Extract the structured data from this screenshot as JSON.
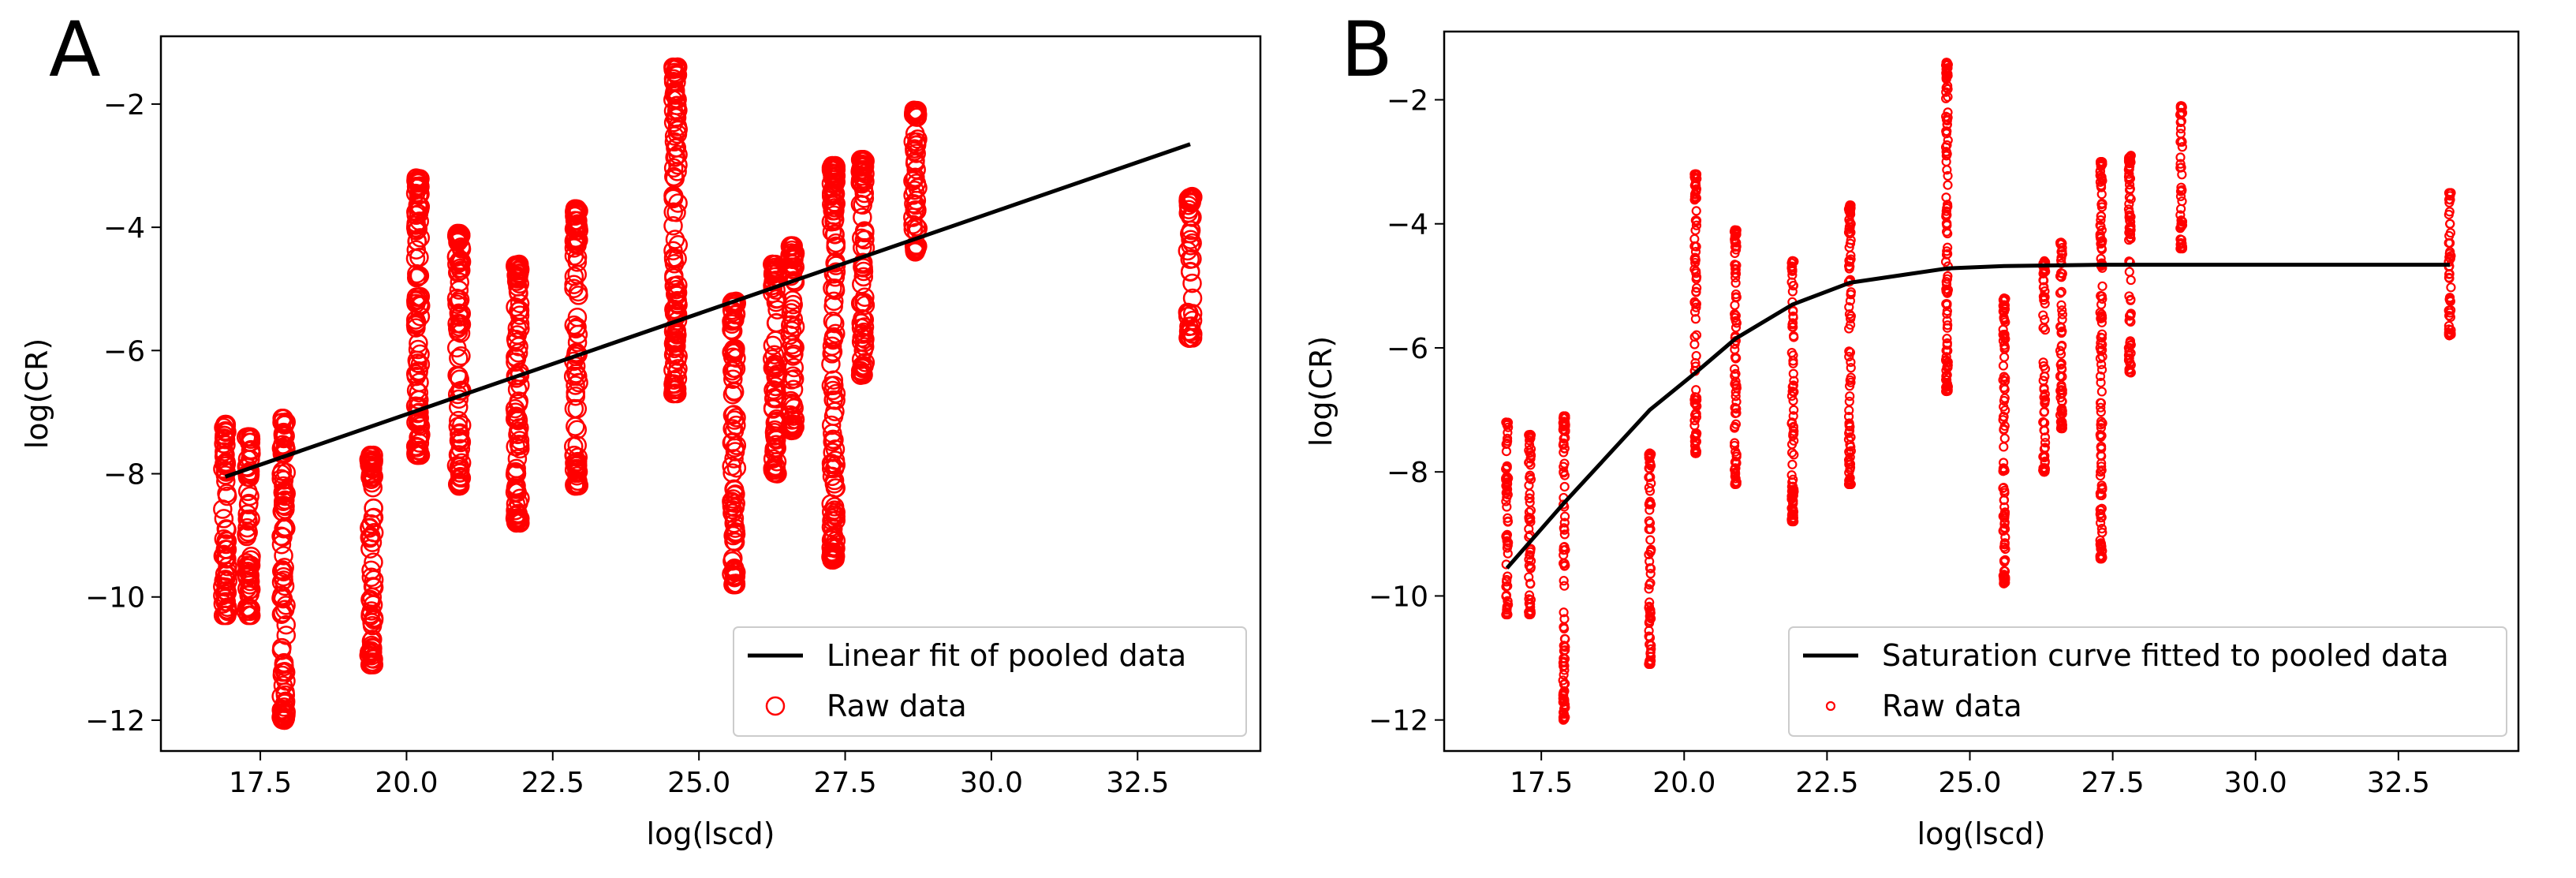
{
  "chart_data": [
    {
      "panel_label": "A",
      "type": "scatter",
      "xlabel": "log(lscd)",
      "ylabel": "log(CR)",
      "xlim": [
        15.8,
        34.6
      ],
      "ylim": [
        -12.5,
        -0.9
      ],
      "xticks": [
        17.5,
        20.0,
        22.5,
        25.0,
        27.5,
        30.0,
        32.5
      ],
      "xtick_labels": [
        "17.5",
        "20.0",
        "22.5",
        "25.0",
        "27.5",
        "30.0",
        "32.5"
      ],
      "yticks": [
        -2,
        -4,
        -6,
        -8,
        -10,
        -12
      ],
      "ytick_labels": [
        "−2",
        "−4",
        "−6",
        "−8",
        "−10",
        "−12"
      ],
      "legend_position": "lower-right",
      "series": [
        {
          "name": "Linear fit of pooled data",
          "kind": "line",
          "color": "#000000",
          "x": [
            16.9,
            33.4
          ],
          "y": [
            -8.05,
            -2.65
          ]
        },
        {
          "name": "Raw data",
          "kind": "scatter",
          "marker": "large-open-circle",
          "color": "#ff0000",
          "groups": [
            {
              "x": 16.9,
              "min": -10.3,
              "max": -7.2
            },
            {
              "x": 17.3,
              "min": -10.3,
              "max": -7.4
            },
            {
              "x": 17.9,
              "min": -12.0,
              "max": -7.1
            },
            {
              "x": 19.4,
              "min": -11.1,
              "max": -7.7
            },
            {
              "x": 20.2,
              "min": -7.7,
              "max": -3.2
            },
            {
              "x": 20.9,
              "min": -8.2,
              "max": -4.1
            },
            {
              "x": 21.9,
              "min": -8.8,
              "max": -4.6
            },
            {
              "x": 22.9,
              "min": -8.2,
              "max": -3.7
            },
            {
              "x": 24.6,
              "min": -6.7,
              "max": -1.4
            },
            {
              "x": 25.6,
              "min": -9.8,
              "max": -5.2
            },
            {
              "x": 26.3,
              "min": -8.0,
              "max": -4.6
            },
            {
              "x": 26.6,
              "min": -7.3,
              "max": -4.3
            },
            {
              "x": 27.3,
              "min": -9.4,
              "max": -3.0
            },
            {
              "x": 27.8,
              "min": -6.4,
              "max": -2.9
            },
            {
              "x": 28.7,
              "min": -4.4,
              "max": -2.1
            },
            {
              "x": 33.4,
              "min": -5.8,
              "max": -3.5
            }
          ]
        }
      ]
    },
    {
      "panel_label": "B",
      "type": "scatter",
      "xlabel": "log(lscd)",
      "ylabel": "log(CR)",
      "xlim": [
        15.8,
        34.6
      ],
      "ylim": [
        -12.5,
        -0.9
      ],
      "xticks": [
        17.5,
        20.0,
        22.5,
        25.0,
        27.5,
        30.0,
        32.5
      ],
      "xtick_labels": [
        "17.5",
        "20.0",
        "22.5",
        "25.0",
        "27.5",
        "30.0",
        "32.5"
      ],
      "yticks": [
        -2,
        -4,
        -6,
        -8,
        -10,
        -12
      ],
      "ytick_labels": [
        "−2",
        "−4",
        "−6",
        "−8",
        "−10",
        "−12"
      ],
      "legend_position": "lower-right",
      "series": [
        {
          "name": "Saturation curve fitted to pooled data",
          "kind": "line",
          "color": "#000000",
          "x": [
            16.9,
            17.9,
            19.4,
            20.2,
            20.9,
            21.9,
            22.9,
            24.6,
            25.6,
            27.3,
            33.4
          ],
          "y": [
            -9.55,
            -8.5,
            -7.0,
            -6.4,
            -5.85,
            -5.3,
            -4.95,
            -4.72,
            -4.68,
            -4.66,
            -4.66
          ]
        },
        {
          "name": "Raw data",
          "kind": "scatter",
          "marker": "small-open-circle",
          "color": "#ff0000",
          "groups": [
            {
              "x": 16.9,
              "min": -10.3,
              "max": -7.2
            },
            {
              "x": 17.3,
              "min": -10.3,
              "max": -7.4
            },
            {
              "x": 17.9,
              "min": -12.0,
              "max": -7.1
            },
            {
              "x": 19.4,
              "min": -11.1,
              "max": -7.7
            },
            {
              "x": 20.2,
              "min": -7.7,
              "max": -3.2
            },
            {
              "x": 20.9,
              "min": -8.2,
              "max": -4.1
            },
            {
              "x": 21.9,
              "min": -8.8,
              "max": -4.6
            },
            {
              "x": 22.9,
              "min": -8.2,
              "max": -3.7
            },
            {
              "x": 24.6,
              "min": -6.7,
              "max": -1.4
            },
            {
              "x": 25.6,
              "min": -9.8,
              "max": -5.2
            },
            {
              "x": 26.3,
              "min": -8.0,
              "max": -4.6
            },
            {
              "x": 26.6,
              "min": -7.3,
              "max": -4.3
            },
            {
              "x": 27.3,
              "min": -9.4,
              "max": -3.0
            },
            {
              "x": 27.8,
              "min": -6.4,
              "max": -2.9
            },
            {
              "x": 28.7,
              "min": -4.4,
              "max": -2.1
            },
            {
              "x": 33.4,
              "min": -5.8,
              "max": -3.5
            }
          ]
        }
      ]
    }
  ]
}
